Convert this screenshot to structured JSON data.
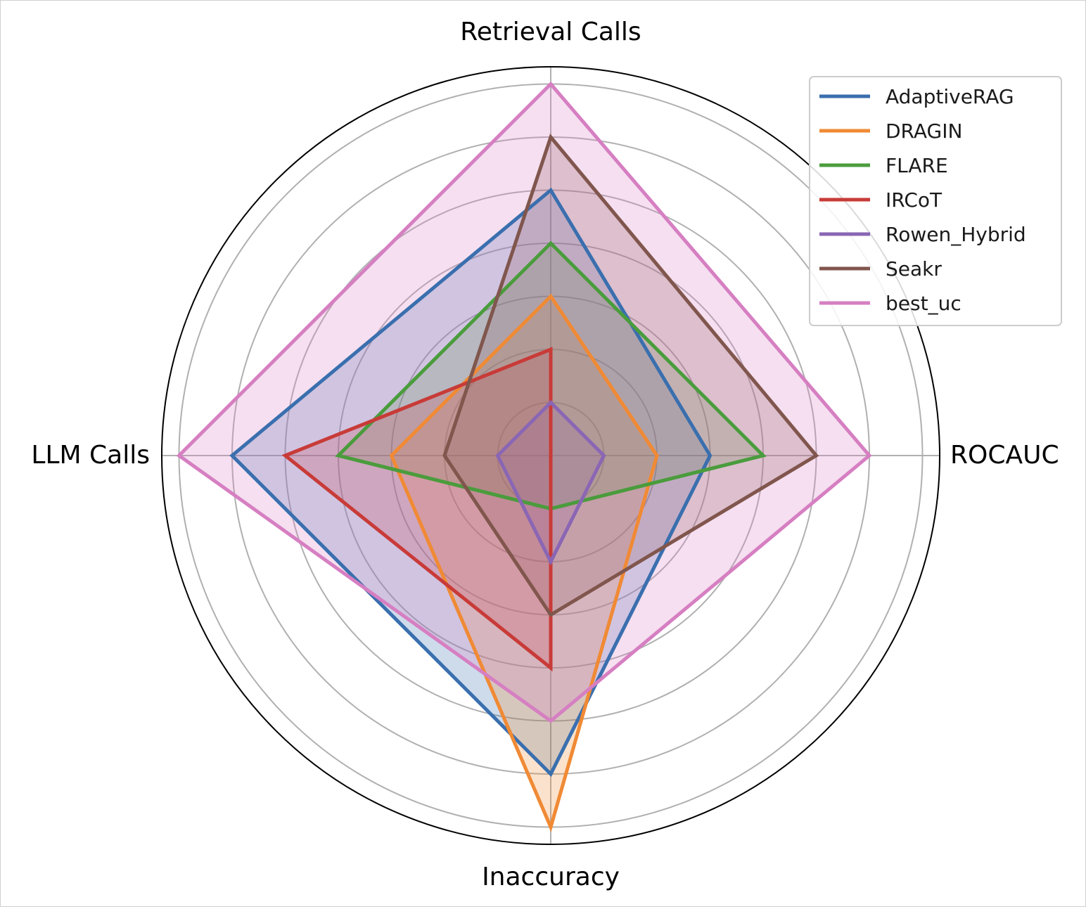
{
  "chart_data": {
    "type": "radar",
    "axes": [
      "Retrieval Calls",
      "ROCAUC",
      "Inaccuracy",
      "LLM Calls"
    ],
    "rlim": [
      0,
      7
    ],
    "rings": [
      1,
      2,
      3,
      4,
      5,
      6,
      7
    ],
    "grid": true,
    "legend_position": "top-right",
    "series": [
      {
        "name": "AdaptiveRAG",
        "color": "#3a6fae",
        "values": [
          5,
          3,
          6,
          6
        ]
      },
      {
        "name": "DRAGIN",
        "color": "#f08a35",
        "values": [
          3,
          2,
          7,
          3
        ]
      },
      {
        "name": "FLARE",
        "color": "#4a9c3c",
        "values": [
          4,
          4,
          1,
          4
        ]
      },
      {
        "name": "IRCoT",
        "color": "#c83b38",
        "values": [
          2,
          0,
          4,
          5
        ]
      },
      {
        "name": "Rowen_Hybrid",
        "color": "#8a66b4",
        "values": [
          1,
          1,
          2,
          1
        ]
      },
      {
        "name": "Seakr",
        "color": "#80564d",
        "values": [
          6,
          5,
          3,
          2
        ]
      },
      {
        "name": "best_uc",
        "color": "#d67fc2",
        "values": [
          7,
          6,
          5,
          7
        ]
      }
    ]
  }
}
